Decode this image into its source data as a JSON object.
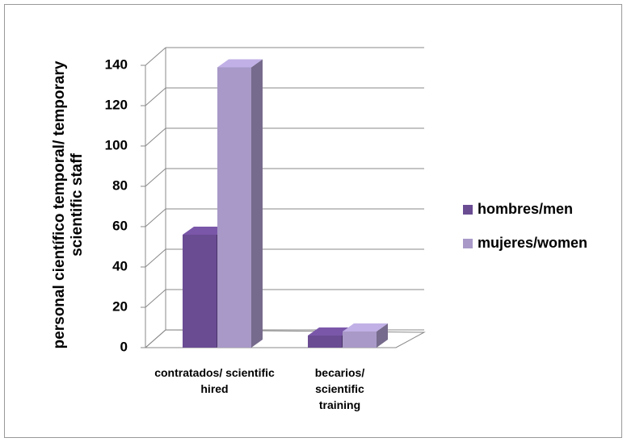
{
  "chart_data": {
    "type": "bar3d",
    "y_label": "personal científico temporal/ temporary scientific staff",
    "categories": [
      "contratados/ scientific hired",
      "becarios/ scientific training"
    ],
    "series": [
      {
        "name": "hombres/men",
        "color": "#6a4c93",
        "values": [
          56,
          6
        ]
      },
      {
        "name": "mujeres/women",
        "color": "#a899c8",
        "values": [
          139,
          8
        ]
      }
    ],
    "ylim": [
      0,
      140
    ],
    "yticks": [
      0,
      20,
      40,
      60,
      80,
      100,
      120,
      140
    ],
    "grid": true,
    "legend": "right"
  }
}
